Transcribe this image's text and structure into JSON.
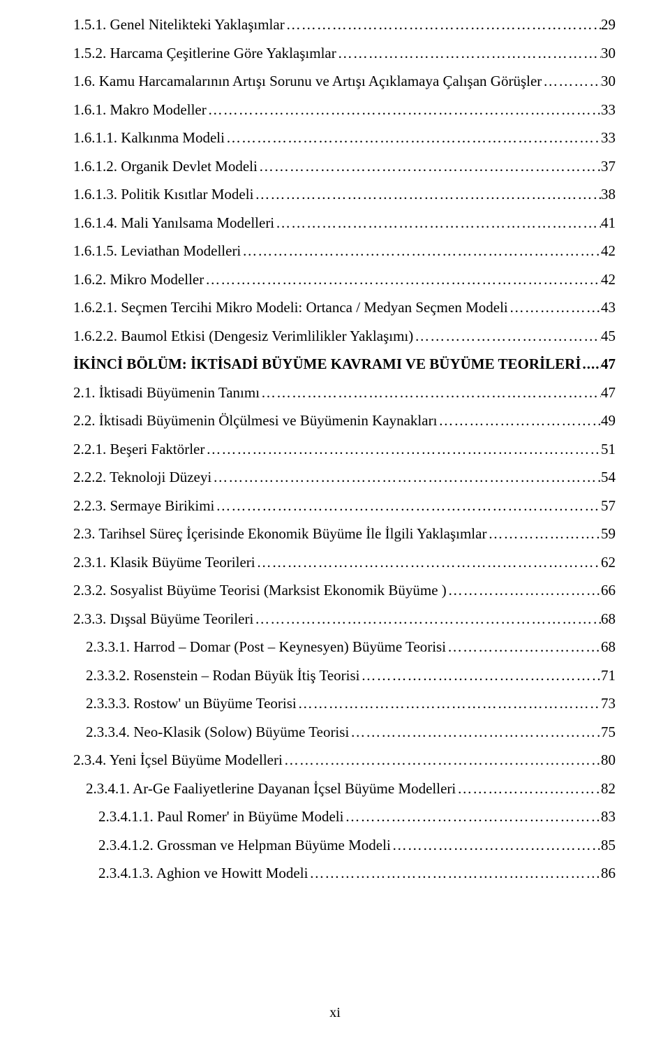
{
  "footer_page": "xi",
  "entries": [
    {
      "indent": 0,
      "bold": false,
      "label": "1.5.1. Genel Nitelikteki Yaklaşımlar",
      "page": "29"
    },
    {
      "indent": 0,
      "bold": false,
      "label": "1.5.2. Harcama Çeşitlerine Göre Yaklaşımlar",
      "page": "30"
    },
    {
      "indent": 0,
      "bold": false,
      "label": "1.6. Kamu Harcamalarının Artışı Sorunu ve Artışı Açıklamaya Çalışan Görüşler",
      "page": "30"
    },
    {
      "indent": 0,
      "bold": false,
      "label": "1.6.1. Makro Modeller",
      "page": "33"
    },
    {
      "indent": 0,
      "bold": false,
      "label": "1.6.1.1. Kalkınma Modeli",
      "page": "33"
    },
    {
      "indent": 0,
      "bold": false,
      "label": "1.6.1.2. Organik Devlet Modeli",
      "page": "37"
    },
    {
      "indent": 0,
      "bold": false,
      "label": "1.6.1.3. Politik Kısıtlar Modeli",
      "page": "38"
    },
    {
      "indent": 0,
      "bold": false,
      "label": "1.6.1.4. Mali Yanılsama Modelleri",
      "page": "41"
    },
    {
      "indent": 0,
      "bold": false,
      "label": "1.6.1.5. Leviathan Modelleri",
      "page": "42"
    },
    {
      "indent": 0,
      "bold": false,
      "label": "1.6.2. Mikro Modeller",
      "page": "42"
    },
    {
      "indent": 0,
      "bold": false,
      "label": "1.6.2.1. Seçmen Tercihi Mikro Modeli: Ortanca / Medyan Seçmen Modeli",
      "page": "43"
    },
    {
      "indent": 0,
      "bold": false,
      "label": "1.6.2.2. Baumol Etkisi (Dengesiz Verimlilikler Yaklaşımı)",
      "page": "45"
    },
    {
      "indent": 0,
      "bold": true,
      "label": "İKİNCİ BÖLÜM: İKTİSADİ BÜYÜME KAVRAMI VE BÜYÜME TEORİLERİ",
      "page": "47"
    },
    {
      "indent": 0,
      "bold": false,
      "label": "2.1. İktisadi Büyümenin Tanımı",
      "page": "47"
    },
    {
      "indent": 0,
      "bold": false,
      "label": "2.2. İktisadi Büyümenin Ölçülmesi ve Büyümenin Kaynakları",
      "page": "49"
    },
    {
      "indent": 0,
      "bold": false,
      "label": "2.2.1. Beşeri Faktörler",
      "page": "51"
    },
    {
      "indent": 0,
      "bold": false,
      "label": "2.2.2. Teknoloji Düzeyi",
      "page": "54"
    },
    {
      "indent": 0,
      "bold": false,
      "label": "2.2.3. Sermaye Birikimi",
      "page": "57"
    },
    {
      "indent": 0,
      "bold": false,
      "label": "2.3. Tarihsel Süreç İçerisinde Ekonomik Büyüme İle İlgili Yaklaşımlar",
      "page": "59"
    },
    {
      "indent": 0,
      "bold": false,
      "label": "2.3.1. Klasik Büyüme Teorileri",
      "page": "62"
    },
    {
      "indent": 0,
      "bold": false,
      "label": "2.3.2. Sosyalist Büyüme Teorisi (Marksist Ekonomik Büyüme )",
      "page": "66"
    },
    {
      "indent": 0,
      "bold": false,
      "label": "2.3.3. Dışsal Büyüme Teorileri",
      "page": "68"
    },
    {
      "indent": 1,
      "bold": false,
      "label": "2.3.3.1. Harrod – Domar (Post – Keynesyen) Büyüme Teorisi",
      "page": "68"
    },
    {
      "indent": 1,
      "bold": false,
      "label": "2.3.3.2. Rosenstein – Rodan Büyük İtiş Teorisi",
      "page": "71"
    },
    {
      "indent": 1,
      "bold": false,
      "label": "2.3.3.3. Rostow' un Büyüme Teorisi",
      "page": "73"
    },
    {
      "indent": 1,
      "bold": false,
      "label": "2.3.3.4. Neo-Klasik (Solow) Büyüme Teorisi",
      "page": "75"
    },
    {
      "indent": 0,
      "bold": false,
      "label": "2.3.4. Yeni İçsel Büyüme Modelleri",
      "page": "80"
    },
    {
      "indent": 1,
      "bold": false,
      "label": "2.3.4.1. Ar-Ge Faaliyetlerine Dayanan İçsel Büyüme Modelleri",
      "page": "82"
    },
    {
      "indent": 2,
      "bold": false,
      "label": "2.3.4.1.1. Paul Romer' in Büyüme Modeli",
      "page": "83"
    },
    {
      "indent": 2,
      "bold": false,
      "label": "2.3.4.1.2. Grossman ve Helpman Büyüme Modeli",
      "page": "85"
    },
    {
      "indent": 2,
      "bold": false,
      "label": "2.3.4.1.3. Aghion ve Howitt Modeli",
      "page": "86"
    }
  ]
}
